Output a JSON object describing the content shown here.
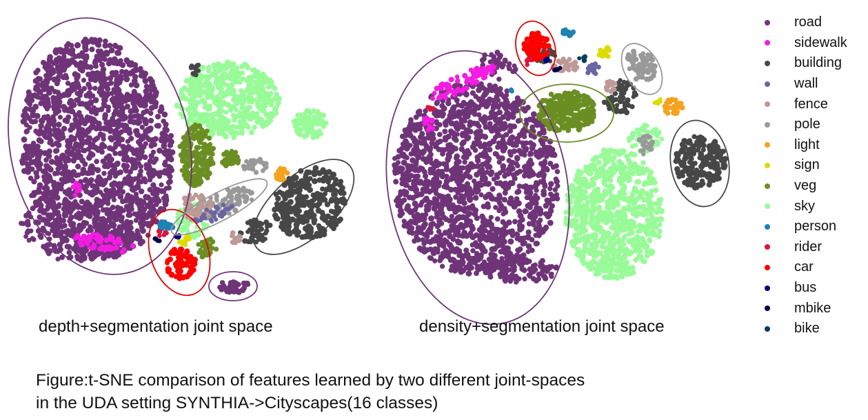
{
  "chart_data": [
    {
      "type": "scatter",
      "title": "depth+segmentation joint space",
      "caption": "depth+segmentation joint space"
    },
    {
      "type": "scatter",
      "title": "density+segmentation joint space",
      "caption": "density+segmentation joint space"
    }
  ],
  "legend": [
    {
      "label": "road",
      "color": "#6f3478"
    },
    {
      "label": "sidewalk",
      "color": "#f41be3"
    },
    {
      "label": "building",
      "color": "#474747"
    },
    {
      "label": "wall",
      "color": "#6a66a3"
    },
    {
      "label": "fence",
      "color": "#be9996"
    },
    {
      "label": "pole",
      "color": "#999999"
    },
    {
      "label": "light",
      "color": "#f5a31f"
    },
    {
      "label": "sign",
      "color": "#dcdc00"
    },
    {
      "label": "veg",
      "color": "#6b8e23"
    },
    {
      "label": "sky",
      "color": "#98fb98"
    },
    {
      "label": "person",
      "color": "#1f82b4"
    },
    {
      "label": "rider",
      "color": "#dc143c"
    },
    {
      "label": "car",
      "color": "#ff0000"
    },
    {
      "label": "bus",
      "color": "#00007a"
    },
    {
      "label": "mbike",
      "color": "#000046"
    },
    {
      "label": "bike",
      "color": "#0b3b5a"
    }
  ],
  "figure_caption": {
    "line1": "Figure:t-SNE comparison of features learned by two different joint-spaces",
    "line2": "in the UDA setting SYNTHIA->Cityscapes(16 classes)"
  }
}
